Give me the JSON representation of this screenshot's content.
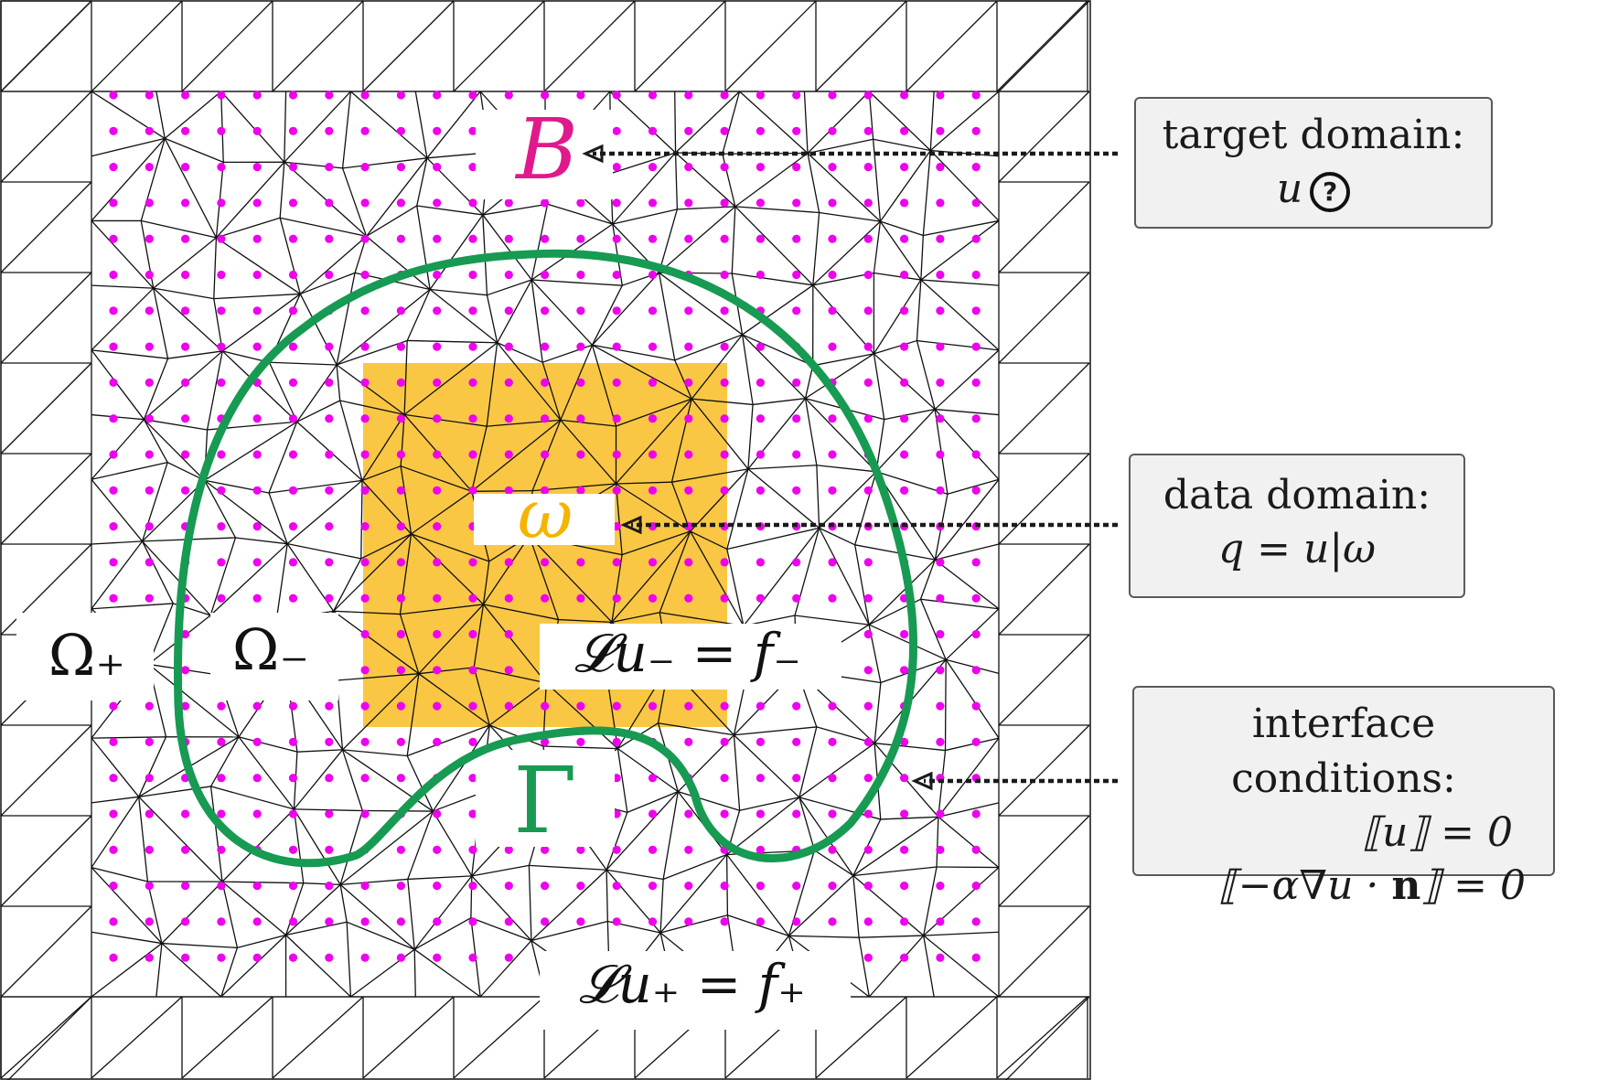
{
  "labels": {
    "target_symbol": "B",
    "data_symbol": "ω",
    "interface_symbol": "Γ",
    "omega_plus": "Ω₊",
    "omega_minus": "Ω₋",
    "eq_minus": "𝓛u₋ = f₋",
    "eq_plus": "𝓛u₊ = f₊"
  },
  "boxes": {
    "target": {
      "title": "target domain:",
      "line1": "u",
      "icon": "question-circle-icon",
      "icon_glyph": "?"
    },
    "data": {
      "title": "data domain:",
      "line1": "q = u|ω"
    },
    "interface": {
      "title": "interface conditions:",
      "line1": "⟦u⟧ = 0",
      "line2_pre": "⟦−α∇u · ",
      "line2_bold": "n",
      "line2_post": "⟧ = 0"
    }
  },
  "colors": {
    "target": "#e0198c",
    "data": "#f5b400",
    "data_fill": "#fac745",
    "interface": "#179a52",
    "dots": "#ee00ee",
    "mesh": "#111111",
    "box_bg": "#f1f1f1"
  }
}
